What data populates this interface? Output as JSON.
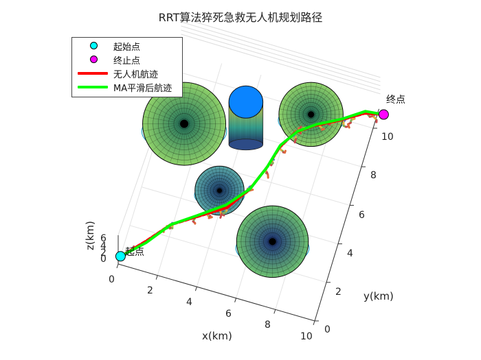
{
  "chart_data": {
    "type": "line",
    "title": "RRT算法猝死急救无人机规划路径",
    "xlabel": "x(km)",
    "ylabel": "y(km)",
    "zlabel": "z(km)",
    "xlim": [
      0,
      10
    ],
    "ylim": [
      0,
      11
    ],
    "zlim": [
      0,
      6
    ],
    "xticks": [
      "0",
      "2",
      "4",
      "6",
      "8",
      "10"
    ],
    "yticks": [
      "0",
      "2",
      "4",
      "6",
      "8",
      "10"
    ],
    "zticks": [
      "0",
      "2",
      "4",
      "6"
    ],
    "grid": true,
    "legend_position": "top-left",
    "legend": [
      {
        "label": "起始点",
        "kind": "marker",
        "color": "#00ffff"
      },
      {
        "label": "终止点",
        "kind": "marker",
        "color": "#ff00ff"
      },
      {
        "label": "无人机航迹",
        "kind": "line",
        "color": "#ff0000"
      },
      {
        "label": "MA平滑后航迹",
        "kind": "line",
        "color": "#00ff00"
      }
    ],
    "start": {
      "label": "起点",
      "x": 0,
      "y": 0.4,
      "z": 0
    },
    "end": {
      "label": "终点",
      "x": 10.3,
      "y": 10.8,
      "z": 0
    },
    "obstacles": [
      {
        "type": "hemisphere",
        "x": 1.1,
        "y": 7.6,
        "r": 2.2
      },
      {
        "type": "hemisphere",
        "x": 3.7,
        "y": 4.9,
        "r": 1.3
      },
      {
        "type": "hemisphere",
        "x": 6.9,
        "y": 3.2,
        "r": 1.9
      },
      {
        "type": "hemisphere",
        "x": 6.9,
        "y": 9.8,
        "r": 1.7
      },
      {
        "type": "cylinder",
        "x": 4.3,
        "y": 7.4,
        "r": 0.9
      }
    ],
    "series": [
      {
        "name": "无人机航迹",
        "x": [
          0,
          1.0,
          1.9,
          3.1,
          4.3,
          5.1,
          5.6,
          5.9,
          6.4,
          7.2,
          8.3,
          9.4,
          10.3
        ],
        "y": [
          0.4,
          1.5,
          2.6,
          3.4,
          4.2,
          5.4,
          6.7,
          7.8,
          8.7,
          9.3,
          9.9,
          10.6,
          10.8
        ]
      },
      {
        "name": "MA平滑后航迹",
        "x": [
          0,
          1.0,
          1.9,
          3.0,
          4.2,
          5.1,
          5.6,
          5.9,
          6.5,
          7.3,
          8.4,
          9.4,
          10.3
        ],
        "y": [
          0.4,
          1.4,
          2.6,
          3.4,
          4.3,
          5.4,
          6.7,
          7.9,
          8.8,
          9.4,
          10.0,
          10.7,
          10.8
        ]
      }
    ]
  }
}
